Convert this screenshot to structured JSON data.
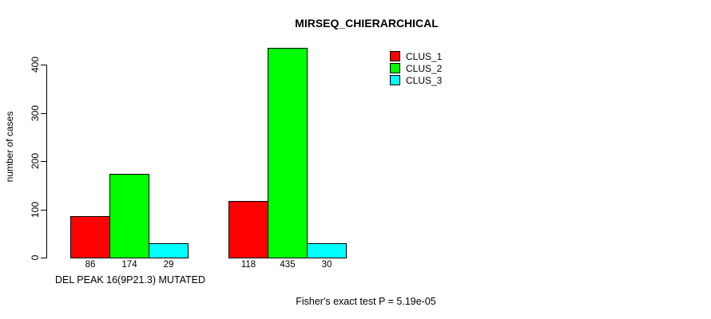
{
  "chart_data": {
    "type": "bar",
    "title": "MIRSEQ_CHIERARCHICAL",
    "ylabel": "number of cases",
    "xlabel": "",
    "ylim": [
      0,
      440
    ],
    "yticks": [
      0,
      100,
      200,
      300,
      400
    ],
    "grid": false,
    "legend_position": "top-right",
    "categories": [
      "DEL PEAK 16(9P21.3) MUTATED",
      ""
    ],
    "series": [
      {
        "name": "CLUS_1",
        "color": "#ff0000",
        "values": [
          86,
          118
        ]
      },
      {
        "name": "CLUS_2",
        "color": "#00ff00",
        "values": [
          174,
          435
        ]
      },
      {
        "name": "CLUS_3",
        "color": "#00ffff",
        "values": [
          29,
          30
        ]
      }
    ],
    "bar_value_labels": {
      "group_1": [
        "86",
        "174",
        "29"
      ],
      "group_2": [
        "118",
        "435",
        "30"
      ]
    },
    "annotation": "Fisher's exact test P = 5.19e-05"
  },
  "colors": {
    "background": "#ffffff",
    "axis": "#000000",
    "bar_border": "#000000",
    "clus_1": "#ff0000",
    "clus_2": "#00ff00",
    "clus_3": "#00ffff"
  }
}
